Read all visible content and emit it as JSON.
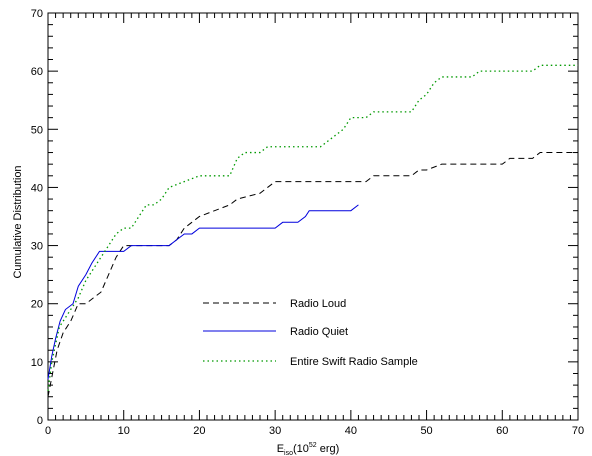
{
  "chart_data": {
    "type": "line",
    "title": "",
    "xlabel": {
      "main": "E",
      "sub": "iso",
      "paren": "(10",
      "sup": "52",
      "unit": " erg)"
    },
    "ylabel": "Cumulative Distribution",
    "xlim": [
      0,
      70
    ],
    "ylim": [
      0,
      70
    ],
    "x_ticks": [
      0,
      10,
      20,
      30,
      40,
      50,
      60,
      70
    ],
    "y_ticks": [
      0,
      10,
      20,
      30,
      40,
      50,
      60,
      70
    ],
    "x_tick_labels": [
      "0",
      "10",
      "20",
      "30",
      "40",
      "50",
      "60",
      "70"
    ],
    "y_tick_labels": [
      "0",
      "10",
      "20",
      "30",
      "40",
      "50",
      "60",
      "70"
    ],
    "grid": false,
    "legend_position": "lower-center",
    "series": [
      {
        "name": "Radio Loud",
        "color": "#000000",
        "style": "dashed",
        "points": [
          [
            0,
            4
          ],
          [
            0.6,
            8
          ],
          [
            1.2,
            12
          ],
          [
            2,
            15
          ],
          [
            3,
            17
          ],
          [
            4,
            20
          ],
          [
            5,
            20
          ],
          [
            6,
            21
          ],
          [
            7,
            22
          ],
          [
            8,
            25
          ],
          [
            9,
            28
          ],
          [
            10,
            30
          ],
          [
            12,
            30
          ],
          [
            16,
            30
          ],
          [
            17,
            31
          ],
          [
            18,
            33
          ],
          [
            19,
            34
          ],
          [
            20,
            35
          ],
          [
            22,
            36
          ],
          [
            24,
            37
          ],
          [
            25,
            38
          ],
          [
            28,
            39
          ],
          [
            29,
            40
          ],
          [
            30,
            41
          ],
          [
            42,
            41
          ],
          [
            43,
            42
          ],
          [
            48,
            42
          ],
          [
            49,
            43
          ],
          [
            50,
            43
          ],
          [
            52,
            44
          ],
          [
            60,
            44
          ],
          [
            61,
            45
          ],
          [
            64,
            45
          ],
          [
            65,
            46
          ],
          [
            70,
            46
          ]
        ]
      },
      {
        "name": "Radio Quiet",
        "color": "#0000dd",
        "style": "solid",
        "points": [
          [
            0,
            7
          ],
          [
            0.5,
            11
          ],
          [
            1,
            14
          ],
          [
            1.6,
            17
          ],
          [
            2.3,
            19
          ],
          [
            3.3,
            20
          ],
          [
            4,
            23
          ],
          [
            5,
            25
          ],
          [
            5.8,
            27
          ],
          [
            6.8,
            29
          ],
          [
            10,
            29
          ],
          [
            11,
            30
          ],
          [
            16,
            30
          ],
          [
            17,
            31
          ],
          [
            18,
            32
          ],
          [
            19,
            32
          ],
          [
            20,
            33
          ],
          [
            30,
            33
          ],
          [
            31,
            34
          ],
          [
            33,
            34
          ],
          [
            34,
            35
          ],
          [
            34.5,
            36
          ],
          [
            40,
            36
          ],
          [
            41,
            37
          ]
        ]
      },
      {
        "name": "Entire Swift Radio Sample",
        "color": "#009900",
        "style": "dotted",
        "points": [
          [
            0,
            5
          ],
          [
            0.5,
            10
          ],
          [
            1,
            13
          ],
          [
            1.5,
            16
          ],
          [
            2,
            17
          ],
          [
            3,
            19
          ],
          [
            4,
            21
          ],
          [
            5,
            24
          ],
          [
            6,
            26
          ],
          [
            7,
            28
          ],
          [
            8,
            30
          ],
          [
            9,
            32
          ],
          [
            10,
            33
          ],
          [
            11,
            33
          ],
          [
            12,
            35
          ],
          [
            13,
            37
          ],
          [
            14,
            37
          ],
          [
            15,
            38
          ],
          [
            16,
            40
          ],
          [
            18,
            41
          ],
          [
            20,
            42
          ],
          [
            24,
            42
          ],
          [
            25,
            45
          ],
          [
            26,
            46
          ],
          [
            28,
            46
          ],
          [
            29,
            47
          ],
          [
            36,
            47
          ],
          [
            37,
            48
          ],
          [
            38,
            49
          ],
          [
            39,
            50
          ],
          [
            40,
            52
          ],
          [
            42,
            52
          ],
          [
            43,
            53
          ],
          [
            48,
            53
          ],
          [
            49,
            55
          ],
          [
            50,
            56
          ],
          [
            51,
            58
          ],
          [
            52,
            59
          ],
          [
            56,
            59
          ],
          [
            57,
            60
          ],
          [
            64,
            60
          ],
          [
            65,
            61
          ],
          [
            70,
            61
          ]
        ]
      }
    ]
  }
}
